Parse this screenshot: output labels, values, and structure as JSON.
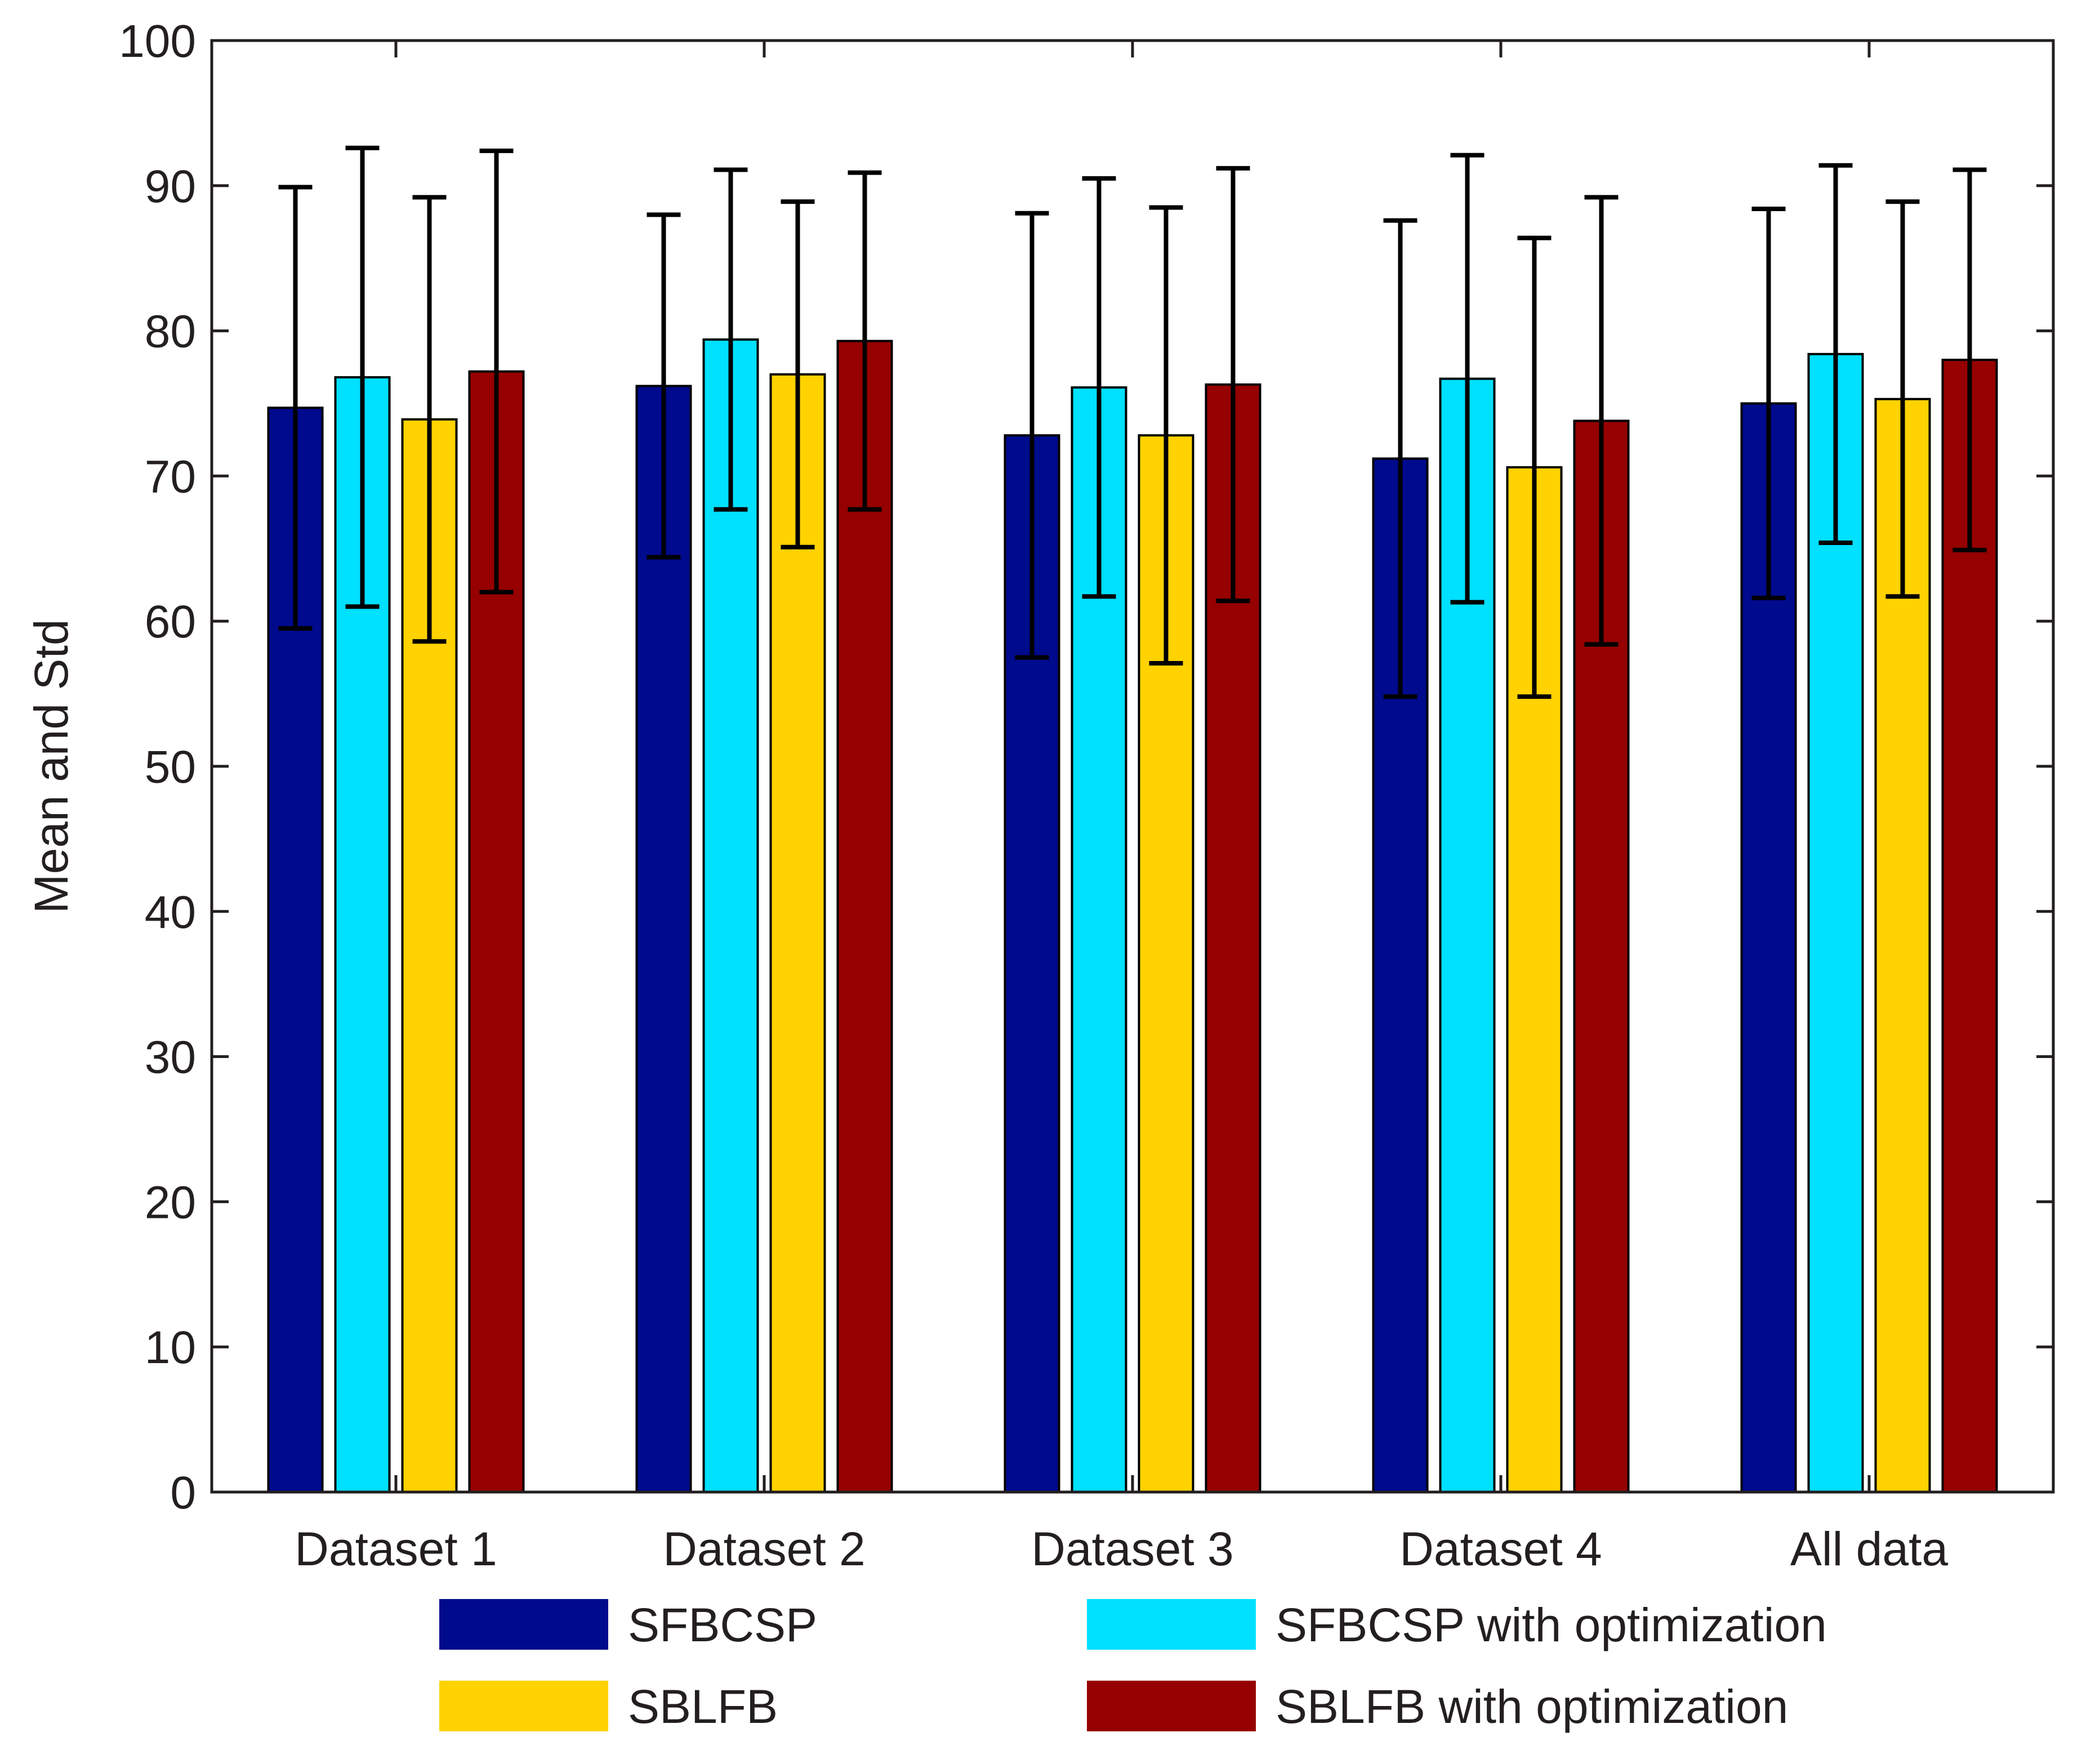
{
  "chart_data": {
    "type": "bar",
    "title": "",
    "xlabel": "",
    "ylabel": "Mean and Std",
    "ylim": [
      0,
      100
    ],
    "yticks": [
      0,
      10,
      20,
      30,
      40,
      50,
      60,
      70,
      80,
      90,
      100
    ],
    "grid": false,
    "legend_position": "bottom",
    "categories": [
      "Dataset 1",
      "Dataset 2",
      "Dataset 3",
      "Dataset 4",
      "All data"
    ],
    "series": [
      {
        "name": "SFBCSP",
        "color": "#000a8c",
        "values": [
          74.7,
          76.2,
          72.8,
          71.2,
          75.0
        ],
        "std": [
          15.2,
          11.8,
          15.3,
          16.4,
          13.4
        ]
      },
      {
        "name": "SFBCSP with optimization",
        "color": "#00e0ff",
        "values": [
          76.8,
          79.4,
          76.1,
          76.7,
          78.4
        ],
        "std": [
          15.8,
          11.7,
          14.4,
          15.4,
          13.0
        ]
      },
      {
        "name": "SBLFB",
        "color": "#ffd200",
        "values": [
          73.9,
          77.0,
          72.8,
          70.6,
          75.3
        ],
        "std": [
          15.3,
          11.9,
          15.7,
          15.8,
          13.6
        ]
      },
      {
        "name": "SBLFB with optimization",
        "color": "#960000",
        "values": [
          77.2,
          79.3,
          76.3,
          73.8,
          78.0
        ],
        "std": [
          15.2,
          11.6,
          14.9,
          15.4,
          13.1
        ]
      }
    ],
    "axis_color": "#231f20",
    "errorbar_color": "#000000"
  }
}
